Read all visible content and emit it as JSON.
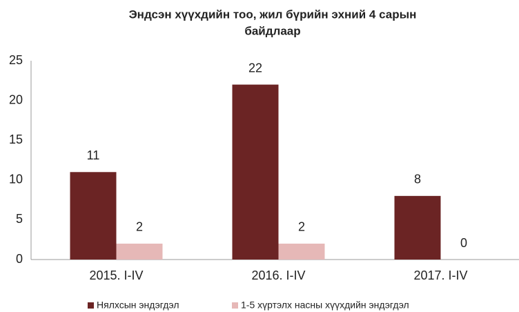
{
  "chart_data": {
    "type": "bar",
    "title": [
      "Эндсэн хүүхдийн тоо, жил бүрийн эхний 4 сарын",
      "байдлаар"
    ],
    "categories": [
      "2015. I-IV",
      "2016. I-IV",
      "2017. I-IV"
    ],
    "series": [
      {
        "name": "Нялхсын эндэгдэл",
        "color": "#6b2424",
        "values": [
          11,
          22,
          8
        ]
      },
      {
        "name": "1-5 хүртэлх насны хүүхдийн эндэгдэл",
        "color": "#e6b8b7",
        "values": [
          2,
          2,
          0
        ]
      }
    ],
    "ylim": [
      0,
      25
    ],
    "yticks": [
      0,
      5,
      10,
      15,
      20,
      25
    ],
    "grid": false,
    "legend": "bottom"
  }
}
